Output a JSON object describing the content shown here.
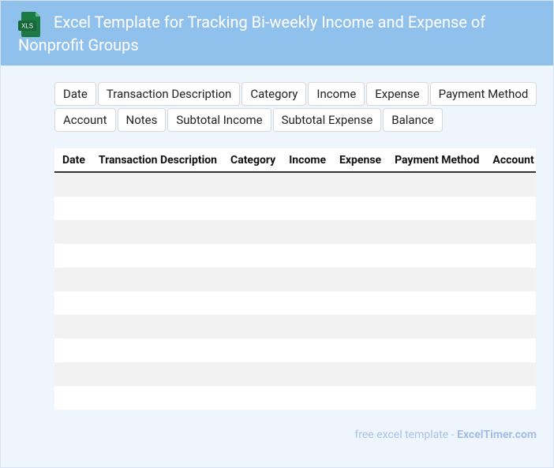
{
  "header": {
    "title": "Excel Template for Tracking Bi-weekly Income and Expense of Nonprofit Groups",
    "icon_label": "XLS"
  },
  "tags": [
    "Date",
    "Transaction Description",
    "Category",
    "Income",
    "Expense",
    "Payment Method",
    "Account",
    "Notes",
    "Subtotal Income",
    "Subtotal Expense",
    "Balance"
  ],
  "table": {
    "columns": [
      "Date",
      "Transaction Description",
      "Category",
      "Income",
      "Expense",
      "Payment Method",
      "Account"
    ]
  },
  "footer": {
    "text": "free excel template - ",
    "site": "ExcelTimer.com"
  }
}
